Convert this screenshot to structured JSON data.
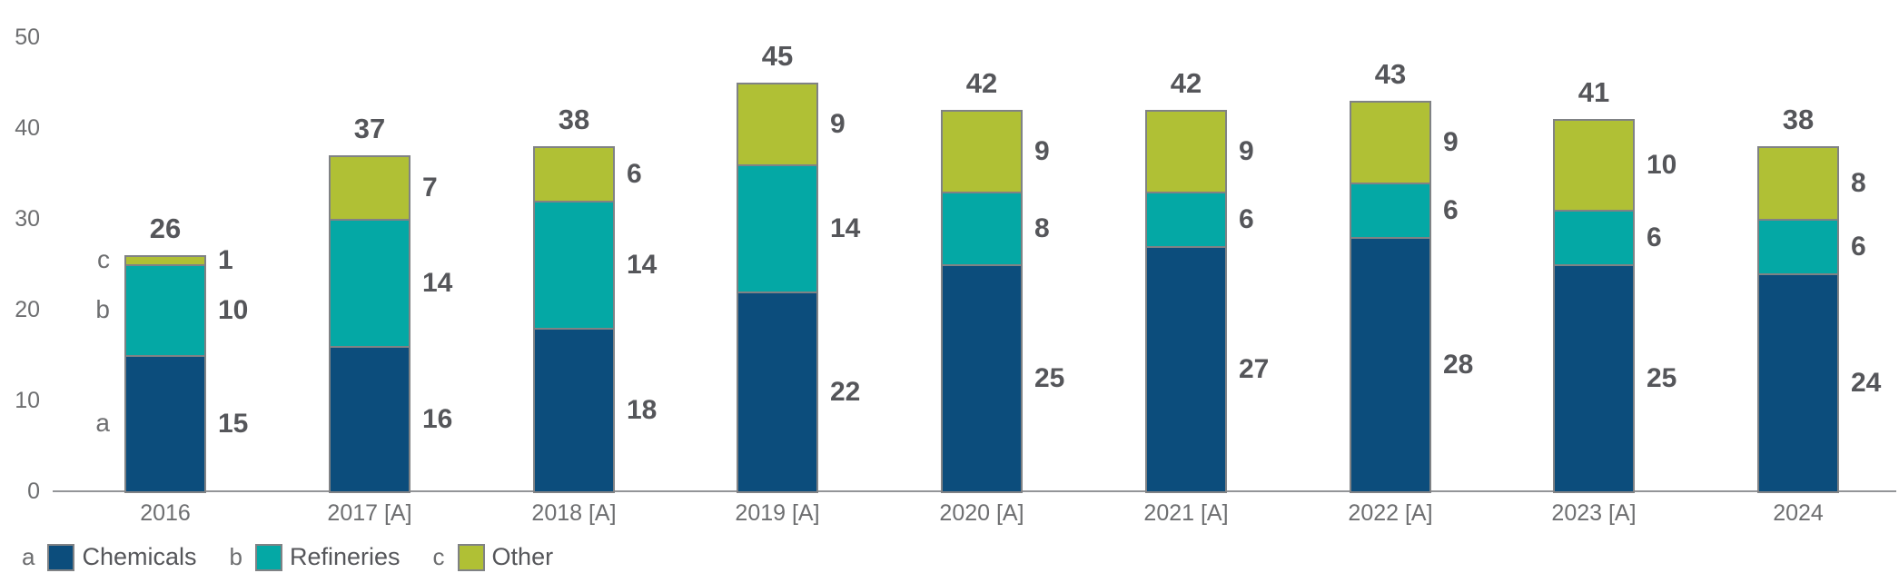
{
  "chart_data": {
    "type": "bar",
    "stacked": true,
    "title": "",
    "xlabel": "",
    "ylabel": "",
    "ylim": [
      0,
      50
    ],
    "yticks": [
      0,
      10,
      20,
      30,
      40,
      50
    ],
    "grid": false,
    "legend_position": "bottom",
    "categories": [
      "2016",
      "2017 [A]",
      "2018 [A]",
      "2019 [A]",
      "2020 [A]",
      "2021 [A]",
      "2022 [A]",
      "2023 [A]",
      "2024"
    ],
    "series": [
      {
        "letter": "a",
        "name": "Chemicals",
        "color": "#0c4d7c",
        "values": [
          15,
          16,
          18,
          22,
          25,
          27,
          28,
          25,
          24
        ]
      },
      {
        "letter": "b",
        "name": "Refineries",
        "color": "#04a8a5",
        "values": [
          10,
          14,
          14,
          14,
          8,
          6,
          6,
          6,
          6
        ]
      },
      {
        "letter": "c",
        "name": "Other",
        "color": "#b0c035",
        "values": [
          1,
          7,
          6,
          9,
          9,
          9,
          9,
          10,
          8
        ]
      }
    ],
    "totals": [
      26,
      37,
      38,
      45,
      42,
      42,
      43,
      41,
      38
    ],
    "series_letter_labels_shown_on_first_bar_only": true
  },
  "legend": {
    "items": [
      {
        "letter": "a",
        "label": "Chemicals",
        "color": "#0c4d7c"
      },
      {
        "letter": "b",
        "label": "Refineries",
        "color": "#04a8a5"
      },
      {
        "letter": "c",
        "label": "Other",
        "color": "#b0c035"
      }
    ]
  },
  "colors": {
    "chemicals": "#0c4d7c",
    "refineries": "#04a8a5",
    "other": "#b0c035",
    "segment_border": "#808285",
    "axis_line": "#939598",
    "value_text": "#55565a",
    "axis_text": "#6d6e70"
  }
}
